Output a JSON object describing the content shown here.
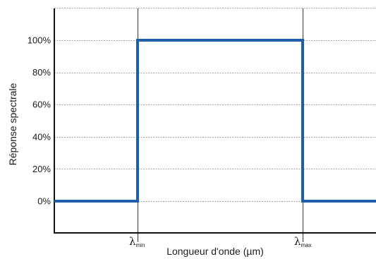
{
  "chart_data": {
    "type": "line",
    "title": "",
    "xlabel": "Longueur d'onde (µm)",
    "ylabel": "Réponse spectrale",
    "ylim": [
      -20,
      120
    ],
    "y_ticks": [
      0,
      20,
      40,
      60,
      80,
      100
    ],
    "y_tick_labels": [
      "0%",
      "20%",
      "40%",
      "60%",
      "80%",
      "100%"
    ],
    "grid": "horizontal dashed",
    "x_reference_lines": [
      {
        "symbol": "λ",
        "subscript": "min"
      },
      {
        "symbol": "λ",
        "subscript": "max"
      }
    ],
    "series": [
      {
        "color": "#1f5fa8",
        "points": [
          {
            "x": "start",
            "y": 0
          },
          {
            "x": "λmin",
            "y": 0
          },
          {
            "x": "λmin",
            "y": 100
          },
          {
            "x": "λmax",
            "y": 100
          },
          {
            "x": "λmax",
            "y": 0
          },
          {
            "x": "end",
            "y": 0
          }
        ]
      }
    ]
  }
}
